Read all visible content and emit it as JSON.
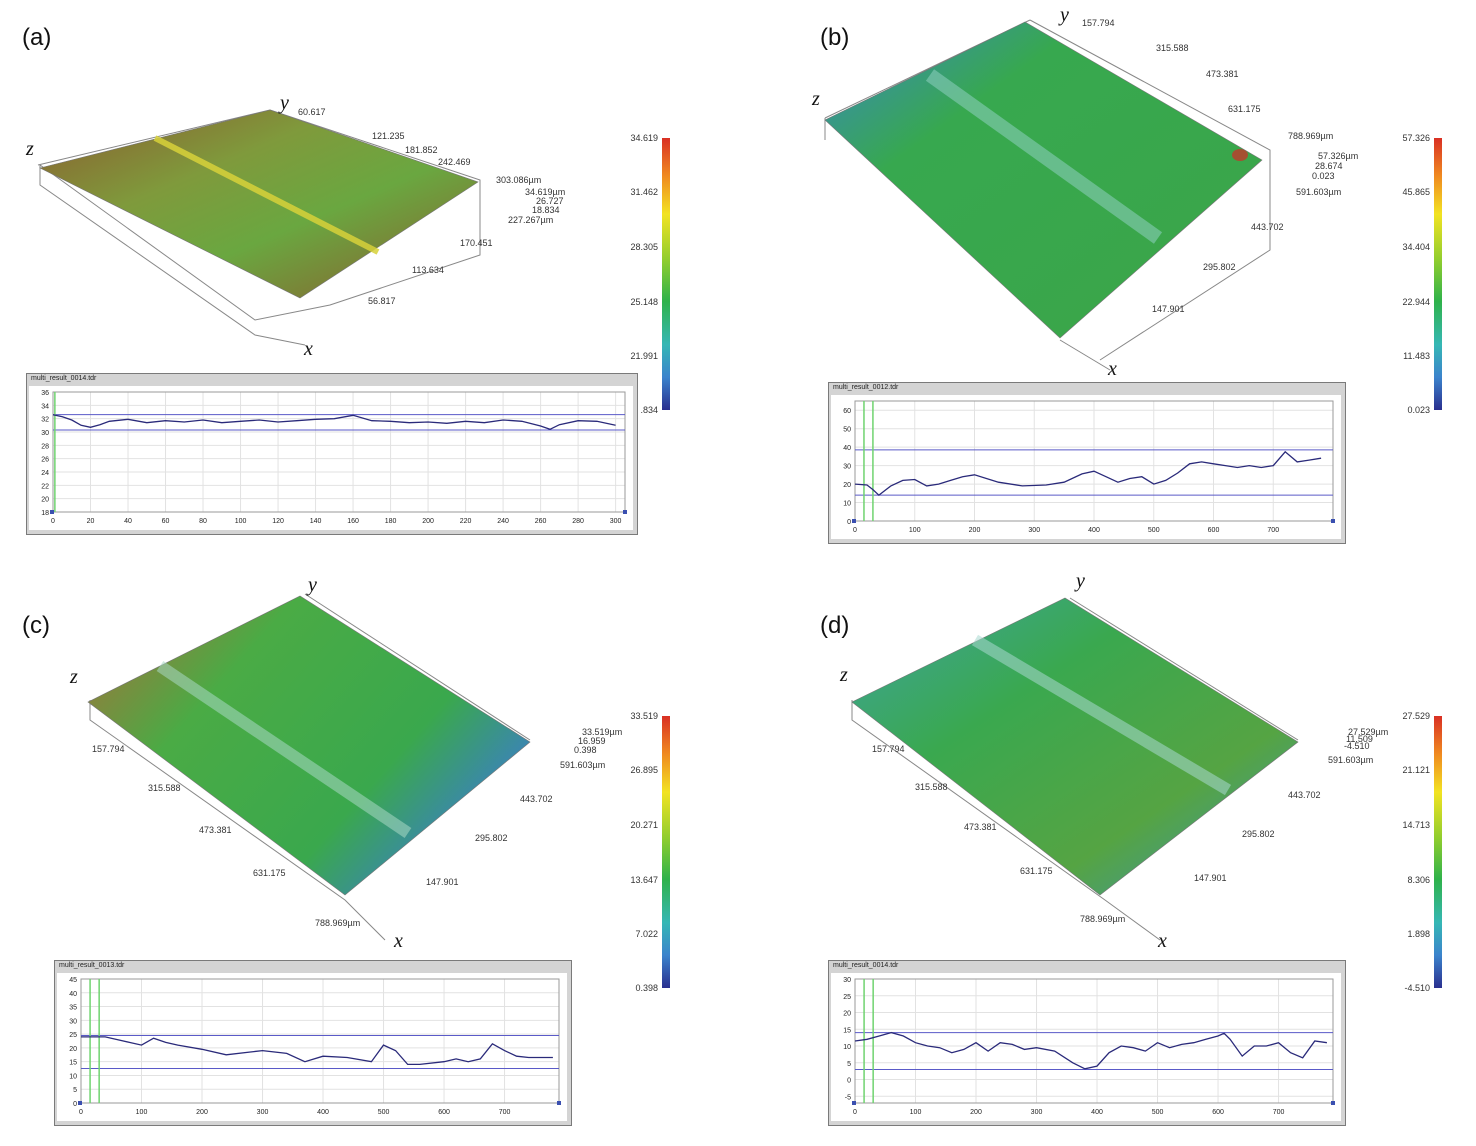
{
  "panels": [
    {
      "label": "(a)",
      "axes": {
        "x": "x",
        "y": "y",
        "z": "z"
      },
      "dims": [
        "60.617",
        "121.235",
        "181.852",
        "242.469",
        "303.086µm",
        "34.619µm",
        "26.727",
        "18.834",
        "227.267µm",
        "170.451",
        "113.634",
        "56.817"
      ],
      "colorbar_ticks": [
        "34.619",
        "31.462",
        "28.305",
        "25.148",
        "21.991",
        ".834"
      ],
      "profile_title": "multi_result_0014.tdr"
    },
    {
      "label": "(b)",
      "axes": {
        "x": "x",
        "y": "y",
        "z": "z"
      },
      "dims": [
        "157.794",
        "315.588",
        "473.381",
        "631.175",
        "788.969µm",
        "57.326µm",
        "28.674",
        "0.023",
        "591.603µm",
        "443.702",
        "295.802",
        "147.901"
      ],
      "colorbar_ticks": [
        "57.326",
        "45.865",
        "34.404",
        "22.944",
        "11.483",
        "0.023"
      ],
      "profile_title": "multi_result_0012.tdr"
    },
    {
      "label": "(c)",
      "axes": {
        "x": "x",
        "y": "y",
        "z": "z"
      },
      "dims": [
        "33.519µm",
        "16.959",
        "0.398",
        "591.603µm",
        "443.702",
        "295.802",
        "147.901",
        "157.794",
        "315.588",
        "473.381",
        "631.175",
        "788.969µm"
      ],
      "colorbar_ticks": [
        "33.519",
        "26.895",
        "20.271",
        "13.647",
        "7.022",
        "0.398"
      ],
      "profile_title": "multi_result_0013.tdr"
    },
    {
      "label": "(d)",
      "axes": {
        "x": "x",
        "y": "y",
        "z": "z"
      },
      "dims": [
        "27.529µm",
        "11.509",
        "-4.510",
        "591.603µm",
        "443.702",
        "295.802",
        "147.901",
        "157.794",
        "315.588",
        "473.381",
        "631.175",
        "788.969µm"
      ],
      "colorbar_ticks": [
        "27.529",
        "21.121",
        "14.713",
        "8.306",
        "1.898",
        "-4.510"
      ],
      "profile_title": "multi_result_0014.tdr"
    }
  ],
  "chart_data": [
    {
      "type": "line",
      "panel": "(a)",
      "xlim": [
        0,
        305
      ],
      "ylim": [
        18,
        36
      ],
      "xticks": [
        0,
        20,
        40,
        60,
        80,
        100,
        120,
        140,
        160,
        180,
        200,
        220,
        240,
        260,
        280,
        300
      ],
      "yticks": [
        18,
        20,
        22,
        24,
        26,
        28,
        30,
        32,
        34,
        36
      ],
      "ref_lines": [
        32.6,
        30.3
      ],
      "markers_x": [
        1
      ],
      "x": [
        0,
        5,
        10,
        15,
        20,
        25,
        30,
        40,
        50,
        60,
        70,
        80,
        90,
        100,
        110,
        120,
        130,
        140,
        150,
        160,
        170,
        180,
        190,
        200,
        210,
        220,
        230,
        240,
        250,
        260,
        265,
        270,
        280,
        290,
        300
      ],
      "y": [
        32.6,
        32.3,
        31.8,
        31.0,
        30.7,
        31.1,
        31.6,
        31.9,
        31.4,
        31.7,
        31.5,
        31.8,
        31.4,
        31.6,
        31.8,
        31.5,
        31.7,
        31.9,
        32.0,
        32.5,
        31.7,
        31.6,
        31.4,
        31.5,
        31.3,
        31.6,
        31.4,
        31.8,
        31.6,
        30.9,
        30.4,
        31.1,
        31.7,
        31.6,
        31.0
      ]
    },
    {
      "type": "line",
      "panel": "(b)",
      "xlim": [
        0,
        800
      ],
      "ylim": [
        0,
        65
      ],
      "xticks": [
        0,
        100,
        200,
        300,
        400,
        500,
        600,
        700
      ],
      "yticks": [
        0,
        10,
        20,
        30,
        40,
        50,
        60
      ],
      "ref_lines": [
        38.5,
        14
      ],
      "markers_x": [
        15,
        30
      ],
      "x": [
        0,
        20,
        30,
        40,
        60,
        80,
        100,
        120,
        140,
        160,
        180,
        200,
        240,
        280,
        320,
        350,
        380,
        400,
        420,
        440,
        460,
        480,
        500,
        520,
        540,
        560,
        580,
        600,
        620,
        640,
        660,
        680,
        700,
        720,
        740,
        760,
        780
      ],
      "y": [
        20,
        19.5,
        17,
        14,
        19,
        22,
        22.5,
        19,
        20,
        22,
        24,
        25,
        21,
        19,
        19.5,
        21,
        25.5,
        27,
        24,
        21,
        23,
        24,
        20,
        22,
        26,
        31,
        32,
        31,
        30,
        29,
        30,
        29,
        30,
        37.5,
        32,
        33,
        34
      ]
    },
    {
      "type": "line",
      "panel": "(c)",
      "xlim": [
        0,
        790
      ],
      "ylim": [
        0,
        45
      ],
      "xticks": [
        0,
        100,
        200,
        300,
        400,
        500,
        600,
        700
      ],
      "yticks": [
        0,
        5,
        10,
        15,
        20,
        25,
        30,
        35,
        40,
        45
      ],
      "ref_lines": [
        24.5,
        12.5
      ],
      "markers_x": [
        15,
        30
      ],
      "x": [
        0,
        20,
        40,
        60,
        80,
        100,
        120,
        140,
        160,
        200,
        240,
        280,
        300,
        340,
        370,
        400,
        440,
        480,
        500,
        520,
        540,
        560,
        600,
        620,
        640,
        660,
        680,
        700,
        720,
        740,
        760,
        780
      ],
      "y": [
        24,
        24,
        24,
        23,
        22,
        21,
        23.5,
        22,
        21,
        19.5,
        17.5,
        18.5,
        19,
        18,
        15,
        17,
        16.5,
        15,
        21,
        19,
        14,
        14,
        15,
        16,
        15,
        16,
        21.5,
        19,
        17,
        16.5,
        16.5,
        16.5
      ]
    },
    {
      "type": "line",
      "panel": "(d)",
      "xlim": [
        0,
        790
      ],
      "ylim": [
        -7,
        30
      ],
      "xticks": [
        0,
        100,
        200,
        300,
        400,
        500,
        600,
        700
      ],
      "yticks": [
        -5,
        0,
        5,
        10,
        15,
        20,
        25,
        30
      ],
      "ref_lines": [
        14,
        3
      ],
      "markers_x": [
        15,
        30
      ],
      "x": [
        0,
        20,
        40,
        60,
        80,
        100,
        120,
        140,
        160,
        180,
        200,
        220,
        240,
        260,
        280,
        300,
        330,
        360,
        380,
        400,
        420,
        440,
        460,
        480,
        500,
        520,
        540,
        560,
        580,
        600,
        610,
        620,
        640,
        660,
        680,
        700,
        720,
        740,
        760,
        780
      ],
      "y": [
        11.5,
        12,
        13,
        14,
        13,
        11,
        10,
        9.5,
        8,
        9,
        11,
        8.5,
        11,
        10.5,
        9,
        9.5,
        8.5,
        5,
        3.2,
        4,
        8,
        10,
        9.5,
        8.5,
        11,
        9.5,
        10.5,
        11,
        12,
        13,
        13.8,
        12,
        7,
        10,
        10,
        11,
        8,
        6.5,
        11.5,
        11
      ]
    }
  ]
}
